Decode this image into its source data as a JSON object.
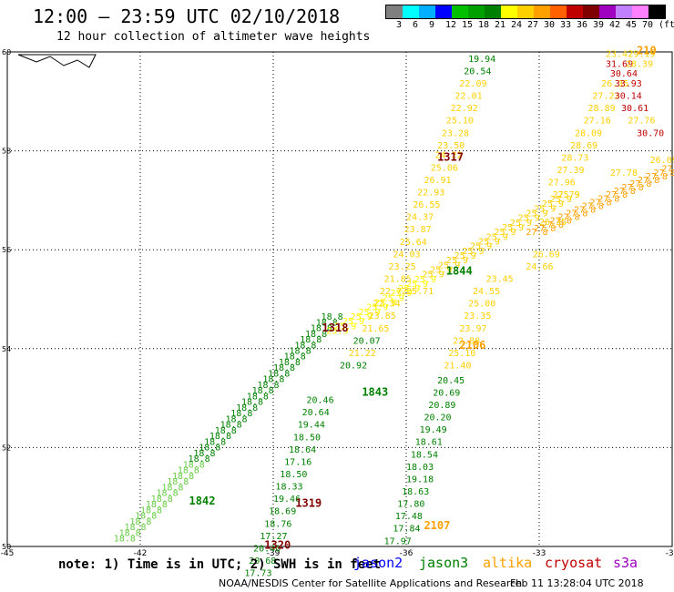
{
  "header": {
    "title": "12:00 – 23:59 UTC 02/10/2018",
    "subtitle": "12 hour collection of altimeter wave heights"
  },
  "colorbar": {
    "colors": [
      "#7f7f7f",
      "#00ffff",
      "#00b0ff",
      "#0000ff",
      "#00c000",
      "#00a000",
      "#008000",
      "#ffff00",
      "#ffd000",
      "#ffa000",
      "#ff6000",
      "#c00000",
      "#800000",
      "#a000c0",
      "#c080ff",
      "#ff80ff",
      "#000000"
    ],
    "labels": [
      "3",
      "6",
      "9",
      "12",
      "15",
      "18",
      "21",
      "24",
      "27",
      "30",
      "33",
      "36",
      "39",
      "42",
      "45",
      "70",
      "(ft)"
    ]
  },
  "chart_data": {
    "type": "scatter",
    "lon_ticks": [
      "-45",
      "-42",
      "-39",
      "-36",
      "-33",
      "-30"
    ],
    "lat_ticks": [
      "60",
      "58",
      "56",
      "54",
      "52",
      "50"
    ],
    "xlim": [
      -45,
      -30
    ],
    "ylim": [
      50,
      60
    ],
    "grid": true,
    "passes": [
      {
        "satellite": "cryosat",
        "label": "1317",
        "label_at": [
          -35.3,
          57.8
        ]
      },
      {
        "satellite": "cryosat",
        "label": "1318",
        "label_at": [
          -37.9,
          54.35
        ]
      },
      {
        "satellite": "cryosat",
        "label": "1319",
        "label_at": [
          -38.5,
          50.8
        ]
      },
      {
        "satellite": "cryosat",
        "label": "1320",
        "label_at": [
          -39.2,
          49.95
        ]
      },
      {
        "satellite": "altika",
        "label": "2106",
        "label_at": [
          -34.8,
          54.0
        ]
      },
      {
        "satellite": "altika",
        "label": "2107",
        "label_at": [
          -35.6,
          50.35
        ]
      },
      {
        "satellite": "altika",
        "label": "210",
        "label_at": [
          -30.8,
          59.95
        ]
      },
      {
        "satellite": "jason3",
        "label": "1842",
        "label_at": [
          -40.9,
          50.85
        ]
      },
      {
        "satellite": "jason3",
        "label": "1843",
        "label_at": [
          -37.0,
          53.05
        ]
      },
      {
        "satellite": "jason3",
        "label": "1844",
        "label_at": [
          -35.1,
          55.5
        ]
      }
    ],
    "values": [
      {
        "sat": "jason3",
        "v": "19.94",
        "lon": -34.6,
        "lat": 59.8
      },
      {
        "sat": "jason3",
        "v": "20.54",
        "lon": -34.7,
        "lat": 59.55
      },
      {
        "sat": "altika",
        "v": "22.09",
        "lon": -34.8,
        "lat": 59.3
      },
      {
        "sat": "altika",
        "v": "22.01",
        "lon": -34.9,
        "lat": 59.05
      },
      {
        "sat": "altika",
        "v": "22.92",
        "lon": -35.0,
        "lat": 58.8
      },
      {
        "sat": "altika",
        "v": "25.10",
        "lon": -35.1,
        "lat": 58.55
      },
      {
        "sat": "altika",
        "v": "23.28",
        "lon": -35.2,
        "lat": 58.3
      },
      {
        "sat": "altika",
        "v": "23.50",
        "lon": -35.3,
        "lat": 58.05
      },
      {
        "sat": "altika",
        "v": "24.22",
        "lon": -35.35,
        "lat": 57.85
      },
      {
        "sat": "altika",
        "v": "25.06",
        "lon": -35.45,
        "lat": 57.6
      },
      {
        "sat": "altika",
        "v": "26.91",
        "lon": -35.6,
        "lat": 57.35
      },
      {
        "sat": "altika",
        "v": "22.93",
        "lon": -35.75,
        "lat": 57.1
      },
      {
        "sat": "altika",
        "v": "26.55",
        "lon": -35.85,
        "lat": 56.85
      },
      {
        "sat": "altika",
        "v": "24.37",
        "lon": -36.0,
        "lat": 56.6
      },
      {
        "sat": "altika",
        "v": "23.87",
        "lon": -36.05,
        "lat": 56.35
      },
      {
        "sat": "altika",
        "v": "25.64",
        "lon": -36.15,
        "lat": 56.1
      },
      {
        "sat": "altika",
        "v": "24.03",
        "lon": -36.3,
        "lat": 55.85
      },
      {
        "sat": "altika",
        "v": "23.25",
        "lon": -36.4,
        "lat": 55.6
      },
      {
        "sat": "altika",
        "v": "21.85",
        "lon": -36.5,
        "lat": 55.35
      },
      {
        "sat": "altika",
        "v": "22.72",
        "lon": -36.6,
        "lat": 55.1
      },
      {
        "sat": "altika",
        "v": "22.34",
        "lon": -36.75,
        "lat": 54.85
      },
      {
        "sat": "altika",
        "v": "23.85",
        "lon": -36.85,
        "lat": 54.6
      },
      {
        "sat": "altika",
        "v": "21.65",
        "lon": -37.0,
        "lat": 54.35
      },
      {
        "sat": "jason3",
        "v": "20.07",
        "lon": -37.2,
        "lat": 54.1
      },
      {
        "sat": "altika",
        "v": "21.22",
        "lon": -37.3,
        "lat": 53.85
      },
      {
        "sat": "jason3",
        "v": "20.92",
        "lon": -37.5,
        "lat": 53.6
      },
      {
        "sat": "jason3",
        "v": "20.46",
        "lon": -38.25,
        "lat": 52.9
      },
      {
        "sat": "jason3",
        "v": "20.64",
        "lon": -38.35,
        "lat": 52.65
      },
      {
        "sat": "jason3",
        "v": "19.44",
        "lon": -38.45,
        "lat": 52.4
      },
      {
        "sat": "jason3",
        "v": "18.50",
        "lon": -38.55,
        "lat": 52.15
      },
      {
        "sat": "jason3",
        "v": "18.64",
        "lon": -38.65,
        "lat": 51.9
      },
      {
        "sat": "jason3",
        "v": "17.16",
        "lon": -38.75,
        "lat": 51.65
      },
      {
        "sat": "jason3",
        "v": "18.50",
        "lon": -38.85,
        "lat": 51.4
      },
      {
        "sat": "jason3",
        "v": "18.33",
        "lon": -38.95,
        "lat": 51.15
      },
      {
        "sat": "jason3",
        "v": "19.46",
        "lon": -39.0,
        "lat": 50.9
      },
      {
        "sat": "jason3",
        "v": "18.69",
        "lon": -39.1,
        "lat": 50.65
      },
      {
        "sat": "jason3",
        "v": "18.76",
        "lon": -39.2,
        "lat": 50.4
      },
      {
        "sat": "jason3",
        "v": "17.27",
        "lon": -39.3,
        "lat": 50.15
      },
      {
        "sat": "jason3",
        "v": "20.40",
        "lon": -39.45,
        "lat": 49.9
      },
      {
        "sat": "jason3",
        "v": "20.68",
        "lon": -39.55,
        "lat": 49.65
      },
      {
        "sat": "jason3",
        "v": "17.73",
        "lon": -39.65,
        "lat": 49.4
      },
      {
        "sat": "altika",
        "v": "24.55",
        "lon": -34.5,
        "lat": 55.1
      },
      {
        "sat": "altika",
        "v": "25.00",
        "lon": -34.6,
        "lat": 54.85
      },
      {
        "sat": "altika",
        "v": "23.35",
        "lon": -34.7,
        "lat": 54.6
      },
      {
        "sat": "altika",
        "v": "23.97",
        "lon": -34.8,
        "lat": 54.35
      },
      {
        "sat": "altika",
        "v": "22.88",
        "lon": -34.95,
        "lat": 54.1
      },
      {
        "sat": "altika",
        "v": "21.40",
        "lon": -35.15,
        "lat": 53.6
      },
      {
        "sat": "jason3",
        "v": "20.45",
        "lon": -35.3,
        "lat": 53.3
      },
      {
        "sat": "jason3",
        "v": "20.69",
        "lon": -35.4,
        "lat": 53.05
      },
      {
        "sat": "jason3",
        "v": "20.89",
        "lon": -35.5,
        "lat": 52.8
      },
      {
        "sat": "jason3",
        "v": "20.20",
        "lon": -35.6,
        "lat": 52.55
      },
      {
        "sat": "jason3",
        "v": "19.49",
        "lon": -35.7,
        "lat": 52.3
      },
      {
        "sat": "jason3",
        "v": "18.61",
        "lon": -35.8,
        "lat": 52.05
      },
      {
        "sat": "jason3",
        "v": "18.54",
        "lon": -35.9,
        "lat": 51.8
      },
      {
        "sat": "jason3",
        "v": "18.03",
        "lon": -36.0,
        "lat": 51.55
      },
      {
        "sat": "jason3",
        "v": "19.18",
        "lon": -36.0,
        "lat": 51.3
      },
      {
        "sat": "jason3",
        "v": "18.63",
        "lon": -36.1,
        "lat": 51.05
      },
      {
        "sat": "jason3",
        "v": "17.80",
        "lon": -36.2,
        "lat": 50.8
      },
      {
        "sat": "jason3",
        "v": "17.48",
        "lon": -36.25,
        "lat": 50.55
      },
      {
        "sat": "jason3",
        "v": "17.84",
        "lon": -36.3,
        "lat": 50.3
      },
      {
        "sat": "jason3",
        "v": "17.97",
        "lon": -36.5,
        "lat": 50.05
      },
      {
        "sat": "altika",
        "v": "23.42",
        "lon": -31.5,
        "lat": 59.9
      },
      {
        "sat": "cryosat",
        "v": "31.69",
        "lon": -31.5,
        "lat": 59.7
      },
      {
        "sat": "cryosat",
        "v": "30.64",
        "lon": -31.4,
        "lat": 59.5
      },
      {
        "sat": "altika",
        "v": "26.35",
        "lon": -31.6,
        "lat": 59.3
      },
      {
        "sat": "cryosat",
        "v": "33.93",
        "lon": -31.3,
        "lat": 59.3
      },
      {
        "sat": "altika",
        "v": "27.22",
        "lon": -31.8,
        "lat": 59.05
      },
      {
        "sat": "cryosat",
        "v": "30.14",
        "lon": -31.3,
        "lat": 59.05
      },
      {
        "sat": "altika",
        "v": "28.89",
        "lon": -31.9,
        "lat": 58.8
      },
      {
        "sat": "cryosat",
        "v": "30.61",
        "lon": -31.15,
        "lat": 58.8
      },
      {
        "sat": "altika",
        "v": "27.16",
        "lon": -32.0,
        "lat": 58.55
      },
      {
        "sat": "altika",
        "v": "27.76",
        "lon": -31.0,
        "lat": 58.55
      },
      {
        "sat": "altika",
        "v": "28.09",
        "lon": -32.2,
        "lat": 58.3
      },
      {
        "sat": "cryosat",
        "v": "30.70",
        "lon": -30.8,
        "lat": 58.3
      },
      {
        "sat": "altika",
        "v": "28.69",
        "lon": -32.3,
        "lat": 58.05
      },
      {
        "sat": "altika",
        "v": "28.73",
        "lon": -32.5,
        "lat": 57.8
      },
      {
        "sat": "altika",
        "v": "27.39",
        "lon": -32.6,
        "lat": 57.55
      },
      {
        "sat": "altika",
        "v": "27.96",
        "lon": -32.8,
        "lat": 57.3
      },
      {
        "sat": "altika",
        "v": "27.78",
        "lon": -31.4,
        "lat": 57.5
      },
      {
        "sat": "altika",
        "v": "27.79",
        "lon": -32.7,
        "lat": 57.05
      },
      {
        "sat": "altika",
        "v": "26.35",
        "lon": -33.0,
        "lat": 56.5
      },
      {
        "sat": "altika",
        "v": "26.69",
        "lon": -33.15,
        "lat": 55.85
      },
      {
        "sat": "altika",
        "v": "24.66",
        "lon": -33.3,
        "lat": 55.6
      },
      {
        "sat": "altika",
        "v": "23.45",
        "lon": -34.2,
        "lat": 55.35
      },
      {
        "sat": "altika",
        "v": "25.71",
        "lon": -36.0,
        "lat": 55.1
      },
      {
        "sat": "altika",
        "v": "25.10",
        "lon": -35.05,
        "lat": 53.85
      },
      {
        "sat": "altika",
        "v": "29.19",
        "lon": -31.0,
        "lat": 59.9
      },
      {
        "sat": "altika",
        "v": "28.39",
        "lon": -31.05,
        "lat": 59.7
      },
      {
        "sat": "altika",
        "v": "26.09",
        "lon": -30.5,
        "lat": 57.75
      }
    ]
  },
  "footer": {
    "note": "note: 1) Time is in UTC; 2) SWH is in feet",
    "legend": [
      {
        "name": "jason2",
        "color": "#0000ff"
      },
      {
        "name": "jason3",
        "color": "#008000"
      },
      {
        "name": "altika",
        "color": "#ffa000"
      },
      {
        "name": "cryosat",
        "color": "#c00000"
      },
      {
        "name": "s3a",
        "color": "#a000c0"
      }
    ],
    "credit": "NOAA/NESDIS Center for Satellite Applications and Research",
    "timestamp": "Feb 11 13:28:04 UTC 2018"
  },
  "colors": {
    "jason3": "#008000",
    "altika": "#ffd000",
    "altika_dark": "#ffa000",
    "cryosat": "#800000",
    "cryosat_red": "#c00000",
    "jason3_light": "#66cc44"
  }
}
